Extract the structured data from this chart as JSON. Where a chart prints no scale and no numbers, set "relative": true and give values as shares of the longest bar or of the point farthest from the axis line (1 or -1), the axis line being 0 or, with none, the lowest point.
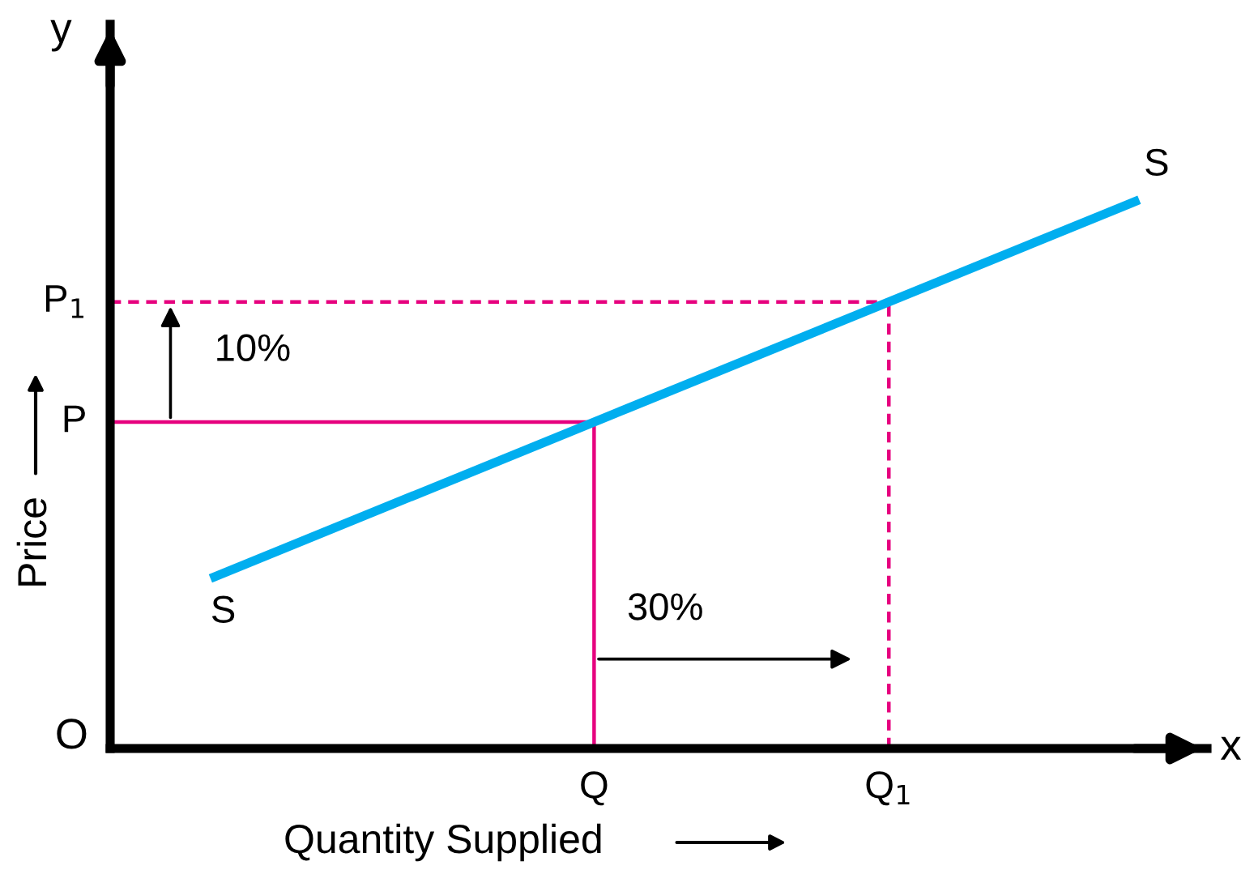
{
  "chart_data": {
    "type": "line",
    "relative": true,
    "xlabel": "Quantity Supplied",
    "ylabel": "Price",
    "categories": [
      null,
      null
    ],
    "series": [
      {
        "name": "S",
        "color": "#00aeef",
        "values": [
          0.31,
          1
        ]
      }
    ],
    "ref_lines": [
      {
        "axis": "y",
        "value": 0.595,
        "label": "P",
        "color": "#e6007e",
        "line_style": "solid"
      },
      {
        "axis": "y",
        "value": 0.814,
        "label": "P$_{1}$",
        "color": "#e6007e",
        "line_style": "dashed"
      }
    ],
    "annotations": [
      "10%",
      "30%",
      "y",
      "x",
      "O",
      "Q",
      "Q$_{1}$"
    ],
    "grid": false,
    "legend": false
  }
}
